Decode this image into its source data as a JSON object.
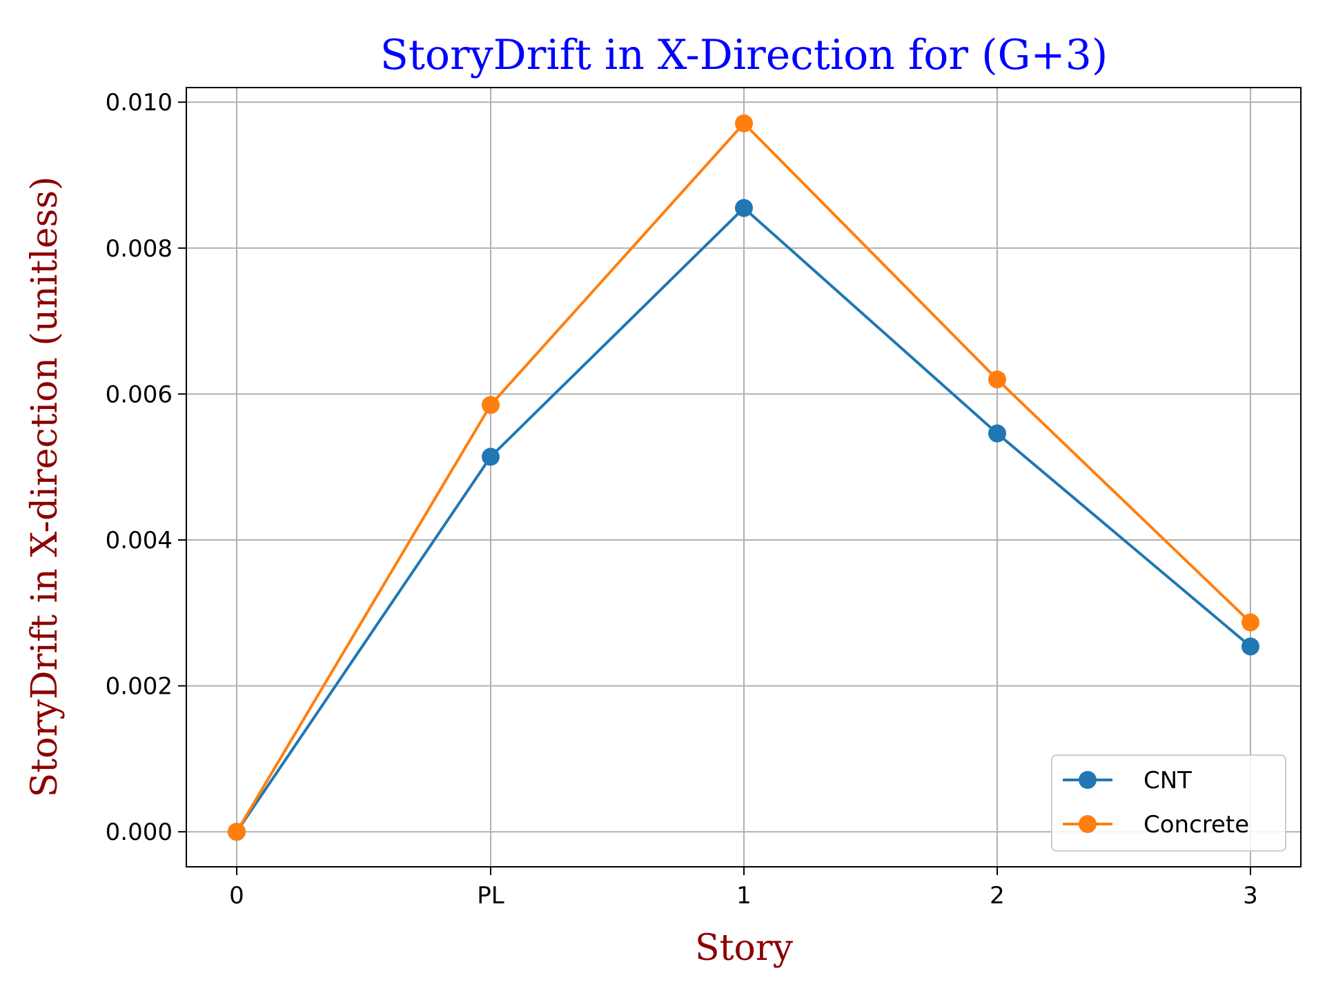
{
  "chart_data": {
    "type": "line",
    "title": "StoryDrift in X-Direction for (G+3)",
    "xlabel": "Story",
    "ylabel": "StoryDrift in X-direction (unitless)",
    "categories": [
      "0",
      "PL",
      "1",
      "2",
      "3"
    ],
    "series": [
      {
        "name": "CNT",
        "color": "#1f77b4",
        "values": [
          0.0,
          0.00514,
          0.00855,
          0.00546,
          0.00254
        ]
      },
      {
        "name": "Concrete",
        "color": "#ff7f0e",
        "values": [
          0.0,
          0.00585,
          0.00971,
          0.0062,
          0.00287
        ]
      }
    ],
    "ylim": [
      -0.00048,
      0.0102
    ],
    "yticks": [
      "0.000",
      "0.002",
      "0.004",
      "0.006",
      "0.008",
      "0.010"
    ],
    "ytick_values": [
      0.0,
      0.002,
      0.004,
      0.006,
      0.008,
      0.01
    ],
    "grid": true,
    "legend_position": "lower right",
    "colors": {
      "title": "#0000ff",
      "axis_label": "#8b0000",
      "grid": "#b0b0b0"
    }
  }
}
